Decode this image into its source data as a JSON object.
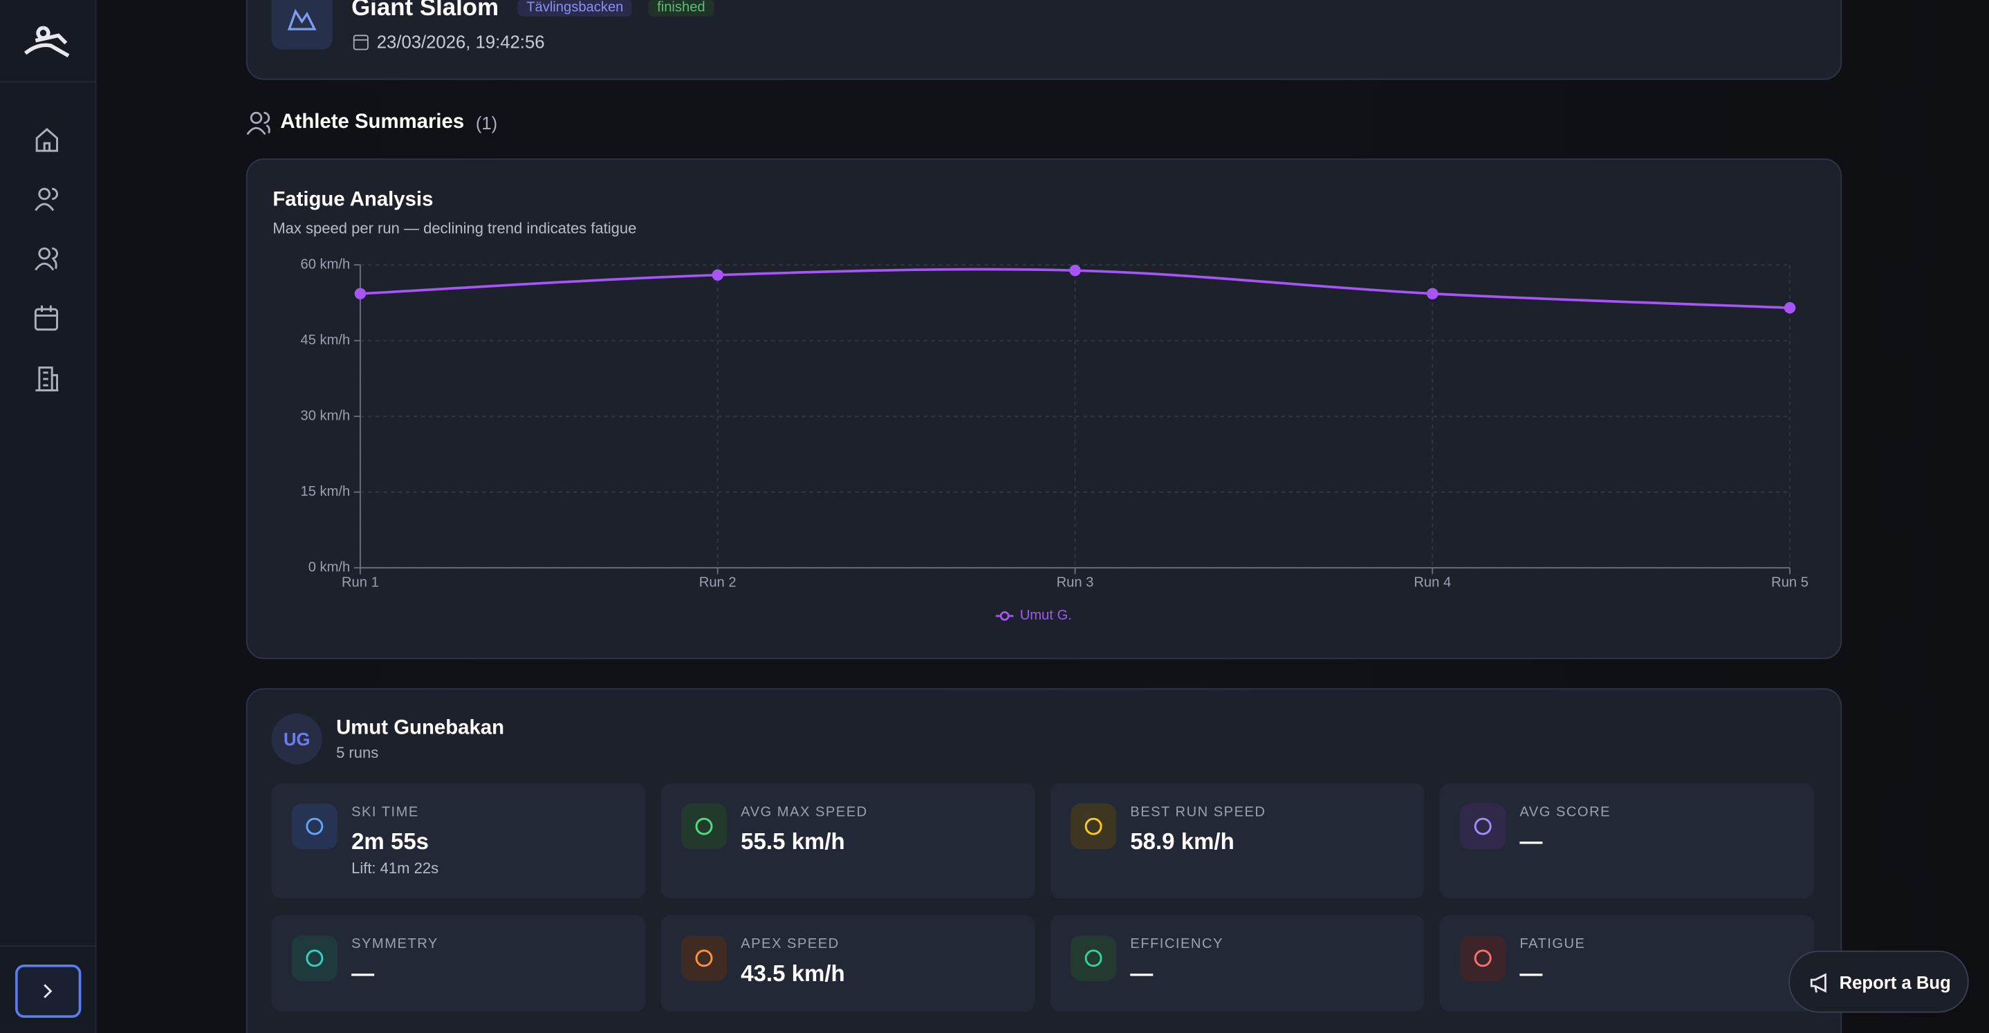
{
  "header": {
    "title": "Giant Slalom",
    "tags": [
      "Tävlingsbacken",
      "finished"
    ],
    "date": "23/03/2026, 19:42:56"
  },
  "section": {
    "title": "Athlete Summaries",
    "count": "(1)"
  },
  "chart_data": {
    "type": "line",
    "title": "Fatigue Analysis",
    "subtitle": "Max speed per run — declining trend indicates fatigue",
    "categories": [
      "Run 1",
      "Run 2",
      "Run 3",
      "Run 4",
      "Run 5"
    ],
    "series": [
      {
        "name": "Umut G.",
        "color": "#a855f7",
        "values": [
          54.3,
          58,
          58.9,
          54.3,
          51.5
        ]
      }
    ],
    "ylim": [
      0,
      60
    ],
    "yticks": [
      {
        "value": 0,
        "label": "0 km/h"
      },
      {
        "value": 15,
        "label": "15 km/h"
      },
      {
        "value": 30,
        "label": "30 km/h"
      },
      {
        "value": 45,
        "label": "45 km/h"
      },
      {
        "value": 60,
        "label": "60 km/h"
      }
    ],
    "grid": true
  },
  "athlete": {
    "initials": "UG",
    "name": "Umut Gunebakan",
    "runs": "5 runs",
    "stats": [
      {
        "label": "SKI TIME",
        "value": "2m 55s",
        "sub": "Lift: 41m 22s"
      },
      {
        "label": "AVG MAX SPEED",
        "value": "55.5 km/h"
      },
      {
        "label": "BEST RUN SPEED",
        "value": "58.9 km/h"
      },
      {
        "label": "AVG SCORE",
        "value": "—"
      },
      {
        "label": "SYMMETRY",
        "value": "—"
      },
      {
        "label": "APEX SPEED",
        "value": "43.5 km/h"
      },
      {
        "label": "EFFICIENCY",
        "value": "—"
      },
      {
        "label": "FATIGUE",
        "value": "—"
      }
    ]
  },
  "report": "Report a Bug"
}
